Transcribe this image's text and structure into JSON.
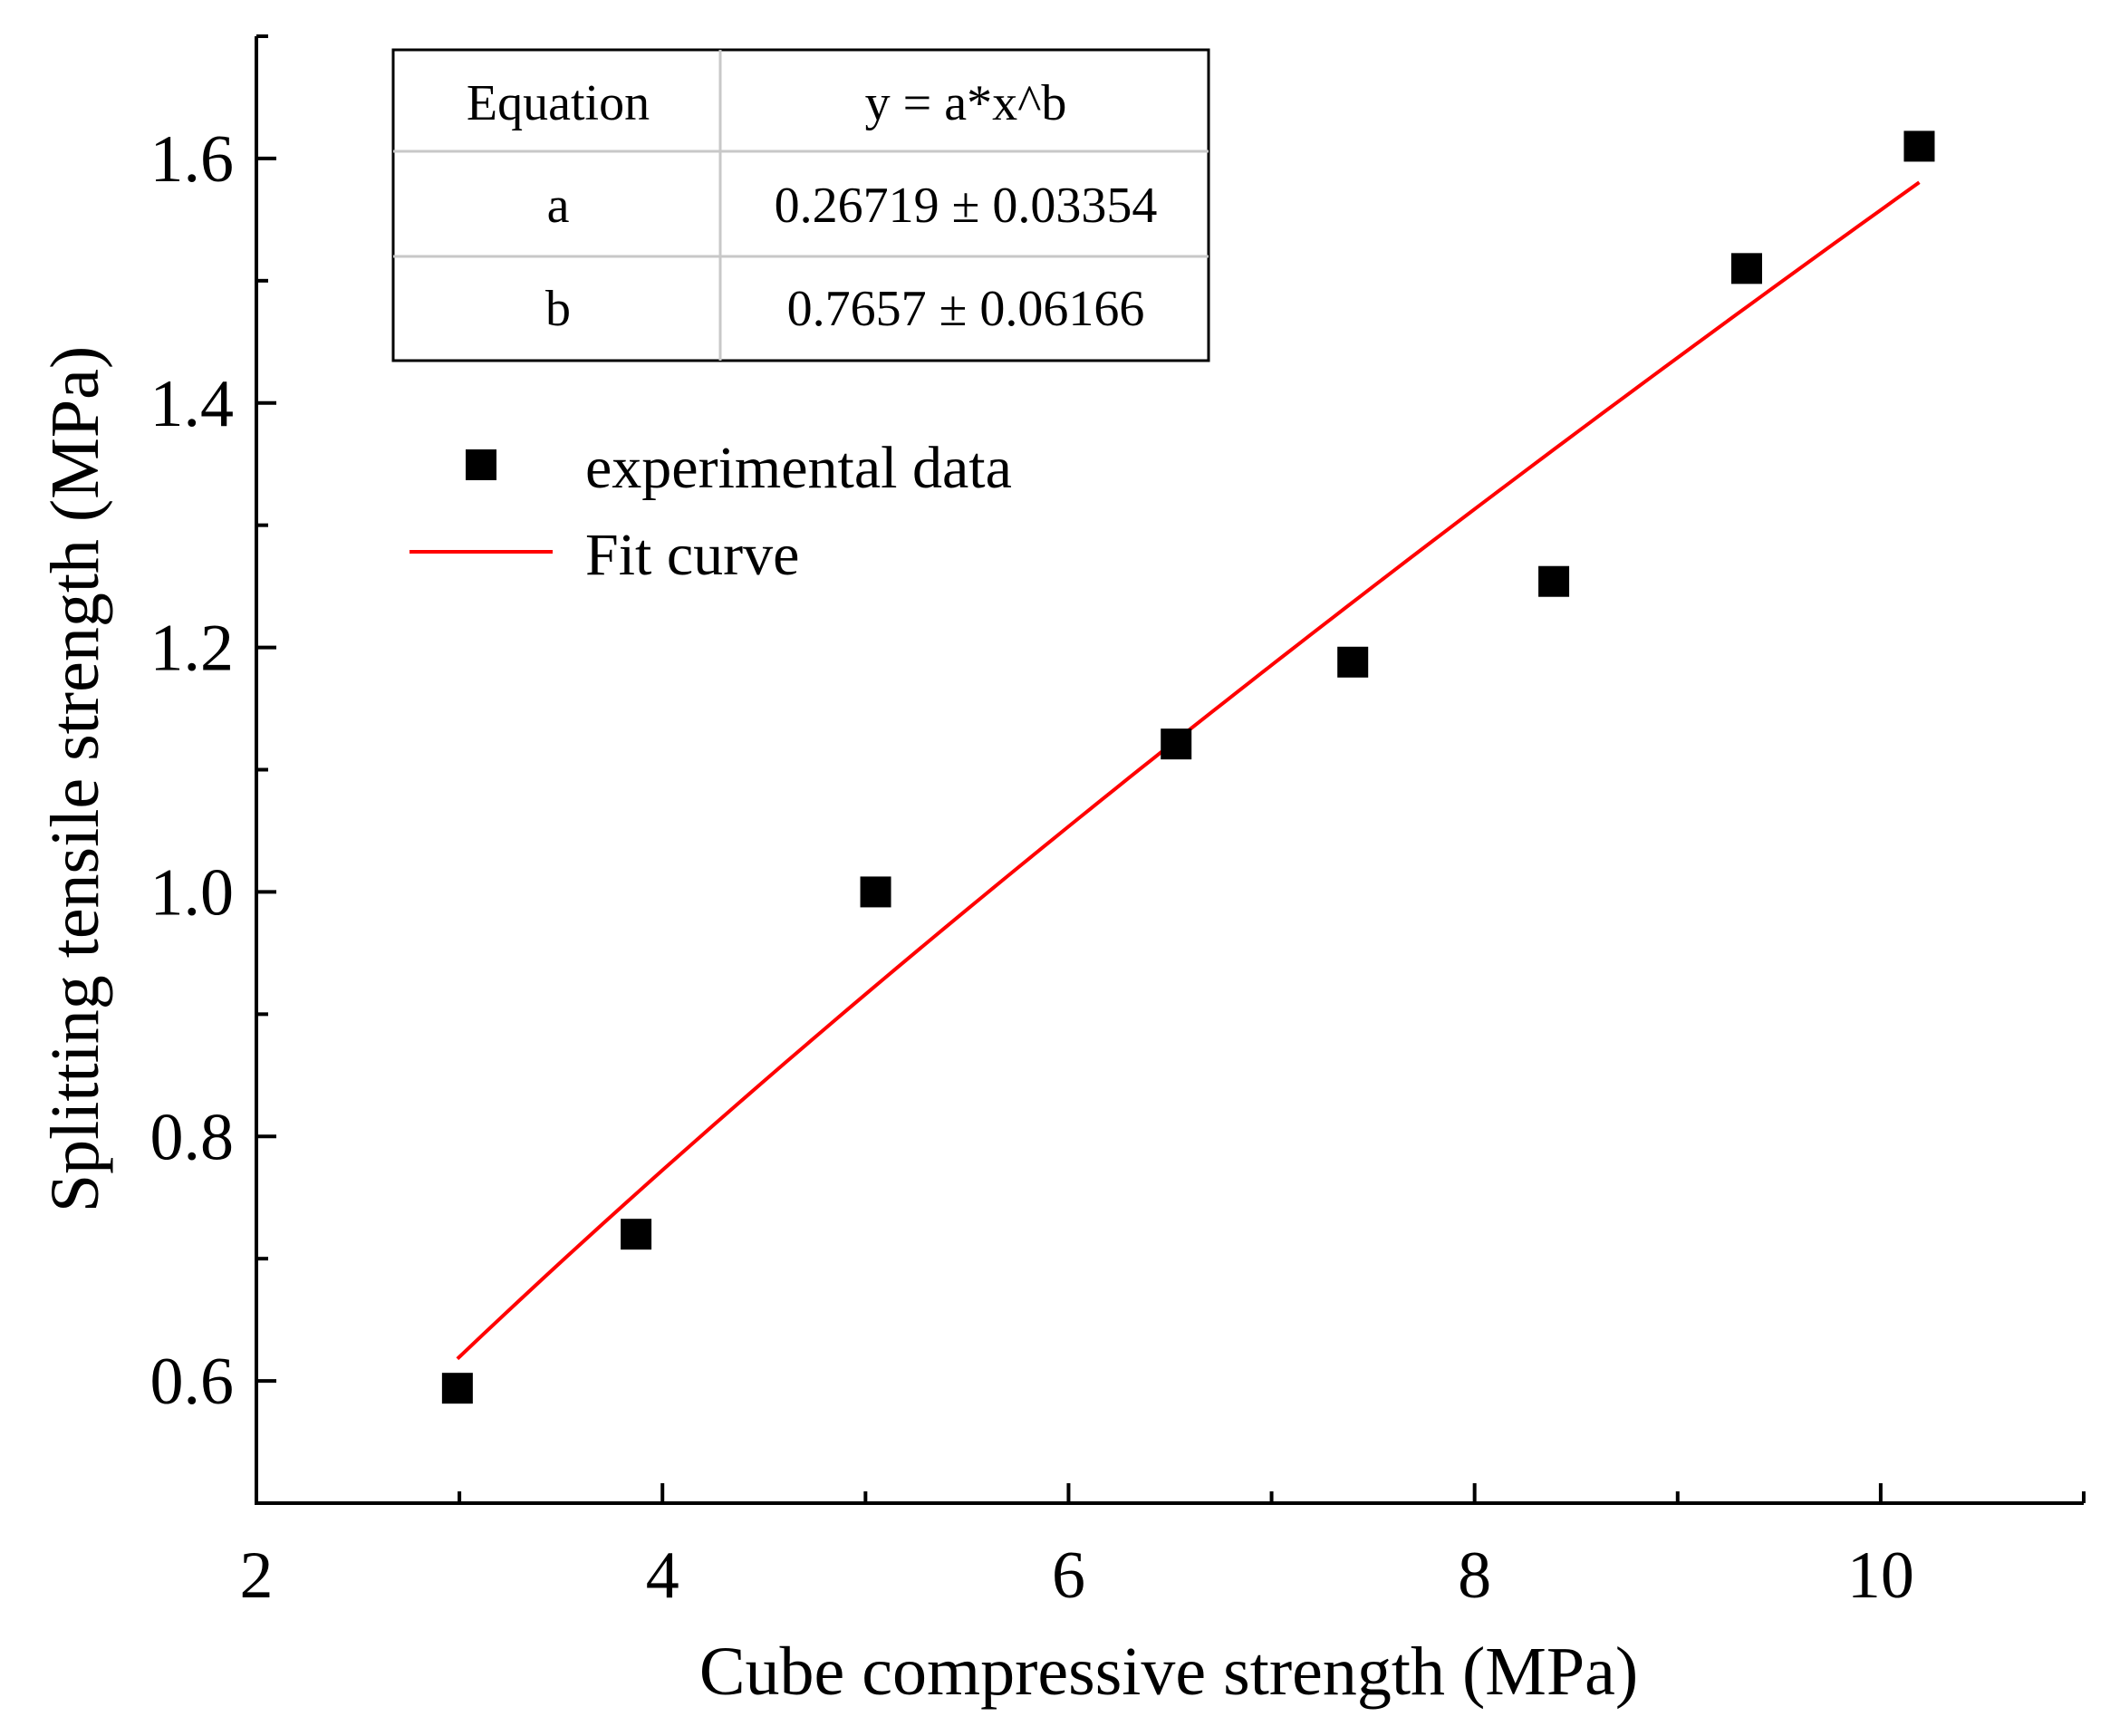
{
  "chart_data": {
    "type": "scatter",
    "title": "",
    "xlabel": "Cube compressive strength (MPa)",
    "ylabel": "Splitting tensile strength (MPa)",
    "xlim": [
      2,
      11
    ],
    "ylim": [
      0.5,
      1.7
    ],
    "x_ticks": [
      2,
      4,
      6,
      8,
      10
    ],
    "x_tick_labels": [
      "2",
      "4",
      "6",
      "8",
      "10"
    ],
    "y_ticks": [
      0.6,
      0.8,
      1.0,
      1.2,
      1.4,
      1.6
    ],
    "y_tick_labels": [
      "0.6",
      "0.8",
      "1.0",
      "1.2",
      "1.4",
      "1.6"
    ],
    "grid": false,
    "legend_position": "upper-left",
    "series": [
      {
        "name": "experimental data",
        "kind": "scatter",
        "marker": "square",
        "color": "#000000",
        "x": [
          2.99,
          3.87,
          5.05,
          6.53,
          7.4,
          8.39,
          9.34,
          10.19
        ],
        "y": [
          0.594,
          0.72,
          1.0,
          1.121,
          1.188,
          1.254,
          1.51,
          1.61
        ]
      },
      {
        "name": "Fit curve",
        "kind": "line",
        "color": "#ff0000",
        "equation": "y = a*x^b",
        "a": 0.26719,
        "b": 0.7657,
        "x_range": [
          2.99,
          10.19
        ]
      }
    ],
    "fit_table": {
      "rows": [
        [
          "Equation",
          "y = a*x^b"
        ],
        [
          "a",
          "0.26719 ± 0.03354"
        ],
        [
          "b",
          "0.7657 ± 0.06166"
        ]
      ]
    }
  }
}
